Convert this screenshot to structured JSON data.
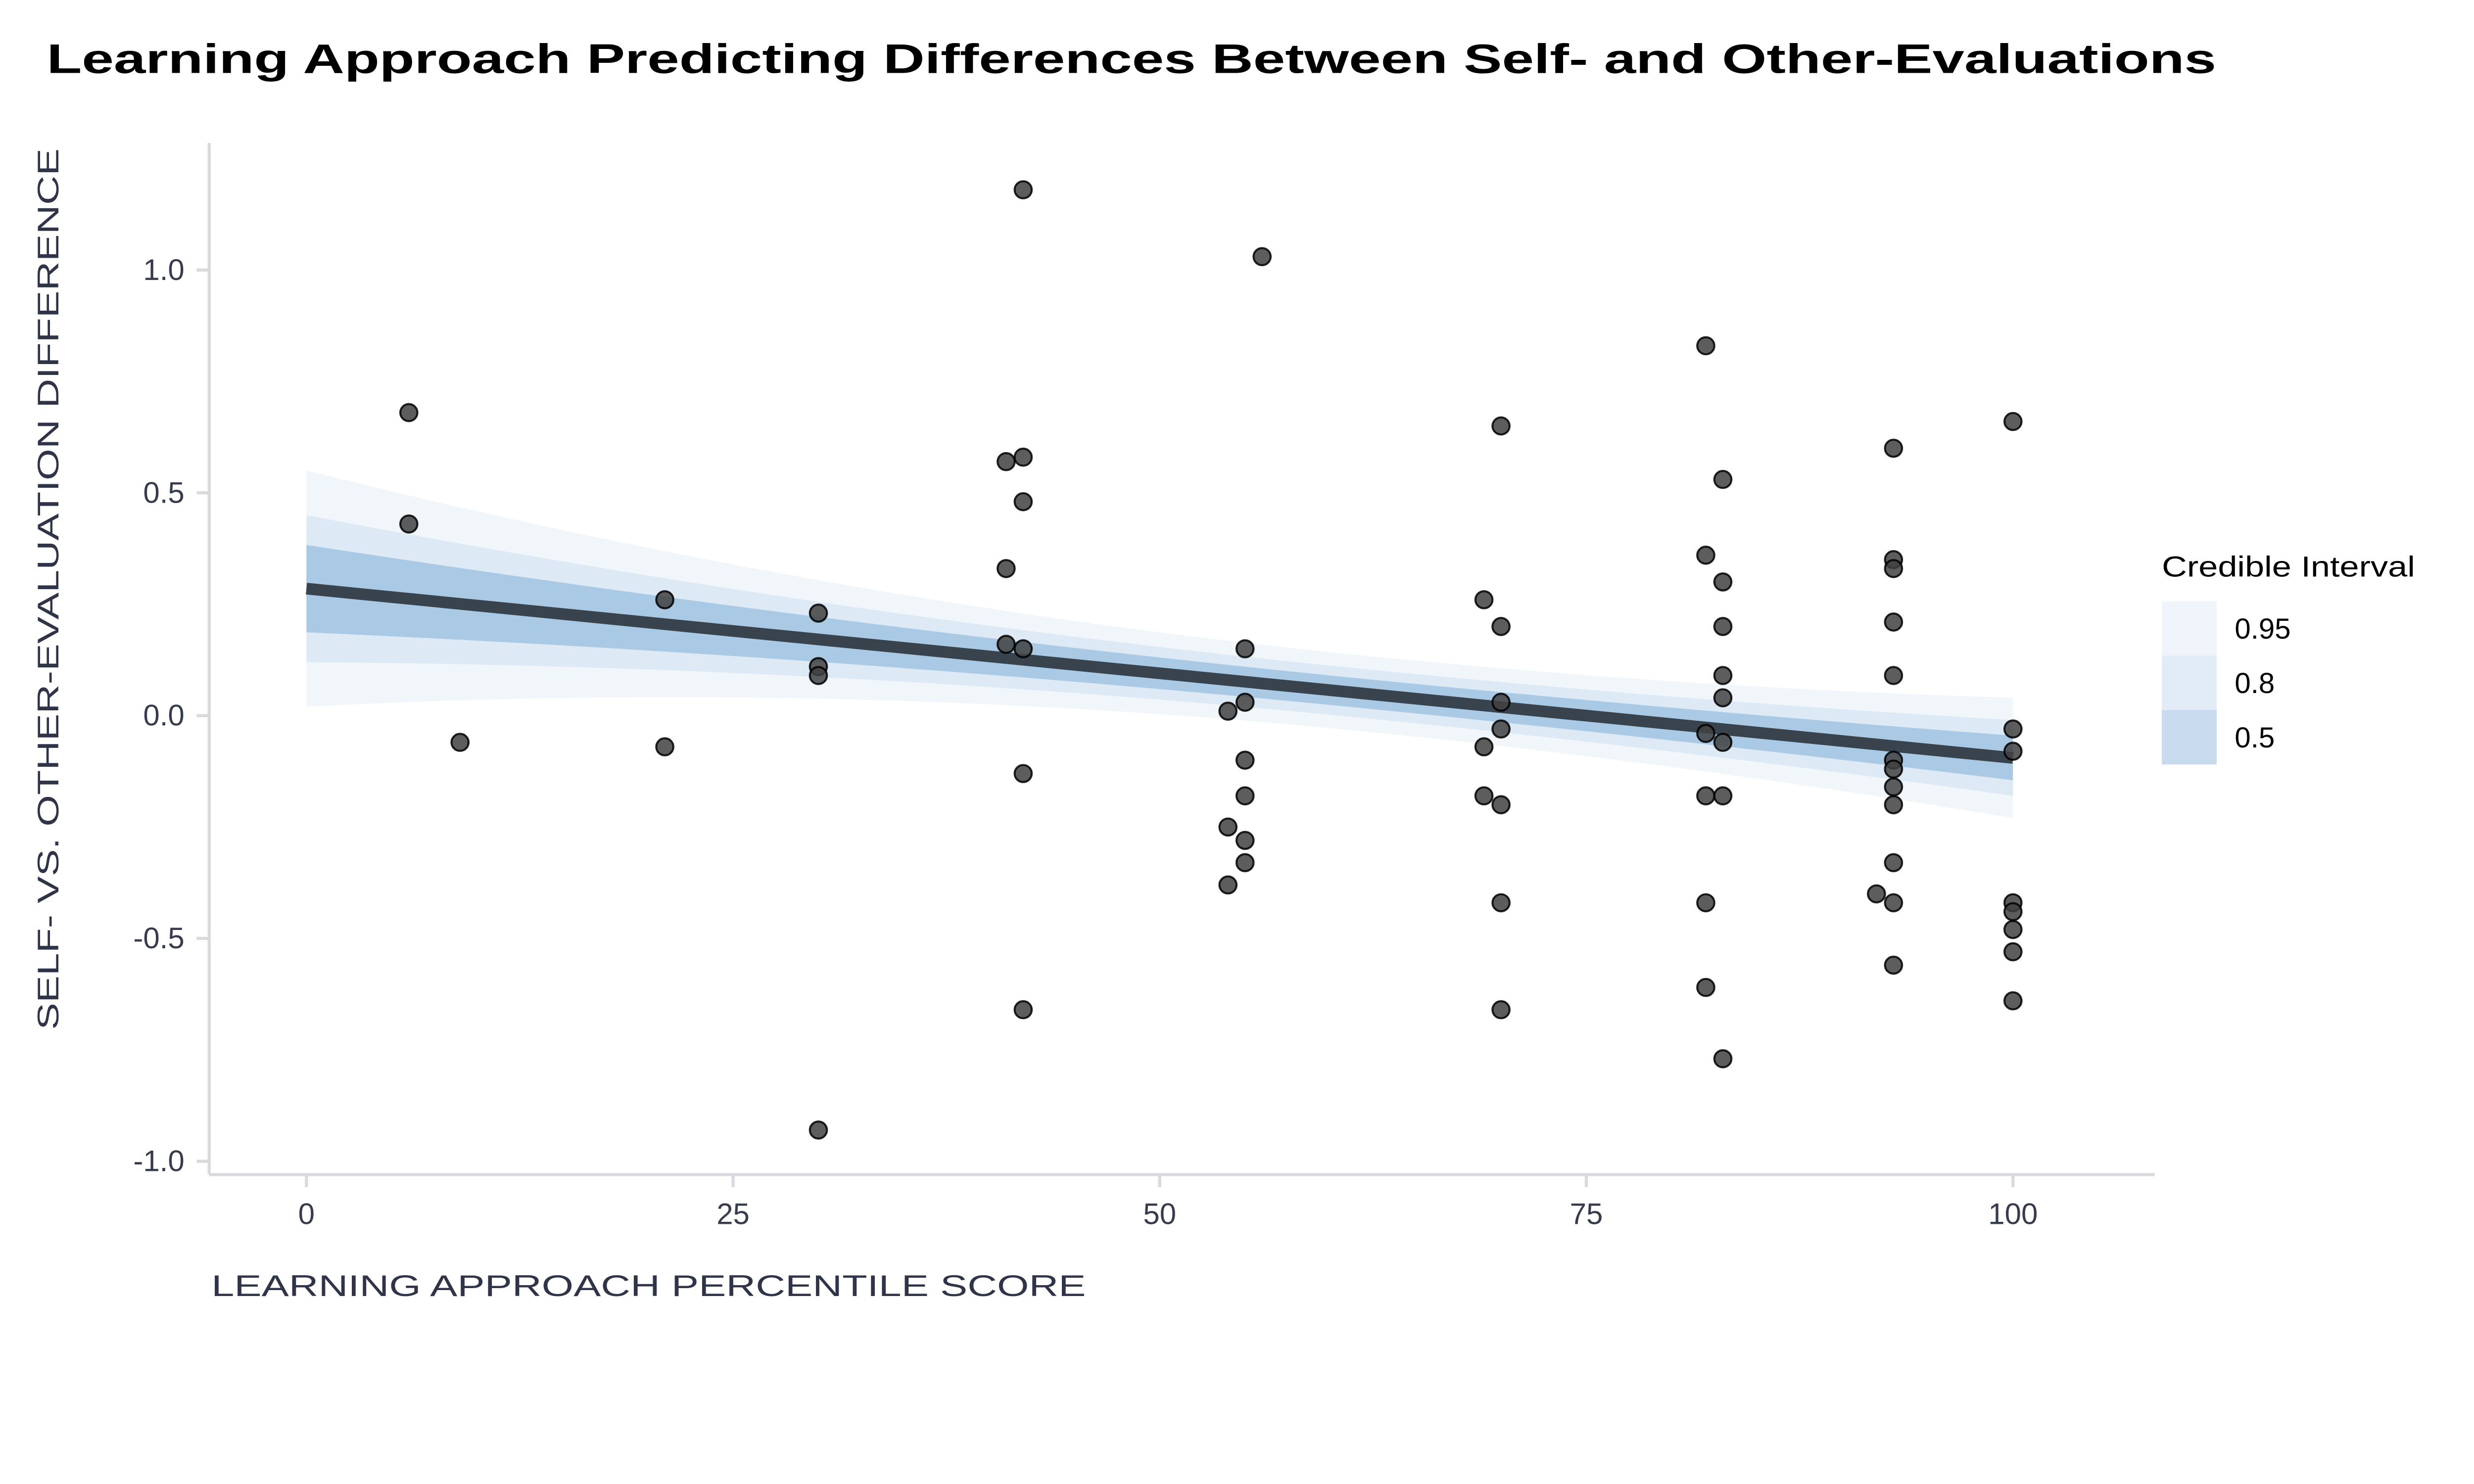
{
  "title": "Learning Approach Predicting Differences Between Self- and Other-Evaluations",
  "chart_data": {
    "type": "scatter",
    "title": "Learning Approach Predicting Differences Between Self- and Other-Evaluations",
    "xlabel": "LEARNING APPROACH PERCENTILE SCORE",
    "ylabel": "SELF- VS. OTHER-EVALUATION DIFFERENCE",
    "xlim": [
      -5.7,
      108.3
    ],
    "ylim": [
      -1.03,
      1.285
    ],
    "grid": false,
    "legend_position": "right-middle",
    "x_ticks": [
      {
        "value": 0,
        "label": "0"
      },
      {
        "value": 25,
        "label": "25"
      },
      {
        "value": 50,
        "label": "50"
      },
      {
        "value": 75,
        "label": "75"
      },
      {
        "value": 100,
        "label": "100"
      }
    ],
    "y_ticks": [
      {
        "value": 1.0,
        "label": "1.0"
      },
      {
        "value": 0.5,
        "label": "0.5"
      },
      {
        "value": 0.0,
        "label": "0.0"
      },
      {
        "value": -0.5,
        "label": "-0.5"
      },
      {
        "value": -1.0,
        "label": "-1.0"
      }
    ],
    "points": [
      [
        6,
        0.68
      ],
      [
        6,
        0.43
      ],
      [
        9,
        -0.06
      ],
      [
        21,
        0.26
      ],
      [
        21,
        -0.07
      ],
      [
        30,
        0.23
      ],
      [
        30,
        0.11
      ],
      [
        30,
        0.09
      ],
      [
        30,
        -0.93
      ],
      [
        41,
        0.57
      ],
      [
        41,
        0.33
      ],
      [
        41,
        0.16
      ],
      [
        42,
        1.18
      ],
      [
        42,
        0.58
      ],
      [
        42,
        0.48
      ],
      [
        42,
        0.15
      ],
      [
        42,
        -0.13
      ],
      [
        42,
        -0.66
      ],
      [
        54,
        0.01
      ],
      [
        54,
        -0.25
      ],
      [
        54,
        -0.38
      ],
      [
        55,
        0.15
      ],
      [
        55,
        0.03
      ],
      [
        55,
        -0.1
      ],
      [
        55,
        -0.18
      ],
      [
        55,
        -0.28
      ],
      [
        55,
        -0.33
      ],
      [
        56,
        1.03
      ],
      [
        69,
        0.26
      ],
      [
        69,
        -0.07
      ],
      [
        69,
        -0.18
      ],
      [
        70,
        0.65
      ],
      [
        70,
        0.2
      ],
      [
        70,
        0.03
      ],
      [
        70,
        -0.03
      ],
      [
        70,
        -0.2
      ],
      [
        70,
        -0.42
      ],
      [
        70,
        -0.66
      ],
      [
        82,
        0.83
      ],
      [
        82,
        0.36
      ],
      [
        82,
        -0.04
      ],
      [
        82,
        -0.18
      ],
      [
        82,
        -0.42
      ],
      [
        82,
        -0.61
      ],
      [
        83,
        0.53
      ],
      [
        83,
        0.3
      ],
      [
        83,
        0.2
      ],
      [
        83,
        0.09
      ],
      [
        83,
        0.04
      ],
      [
        83,
        -0.06
      ],
      [
        83,
        -0.18
      ],
      [
        83,
        -0.77
      ],
      [
        92,
        -0.4
      ],
      [
        93,
        0.6
      ],
      [
        93,
        0.35
      ],
      [
        93,
        0.33
      ],
      [
        93,
        0.21
      ],
      [
        93,
        0.09
      ],
      [
        93,
        -0.1
      ],
      [
        93,
        -0.12
      ],
      [
        93,
        -0.16
      ],
      [
        93,
        -0.2
      ],
      [
        93,
        -0.33
      ],
      [
        93,
        -0.42
      ],
      [
        93,
        -0.56
      ],
      [
        100,
        0.66
      ],
      [
        100,
        -0.03
      ],
      [
        100,
        -0.08
      ],
      [
        100,
        -0.42
      ],
      [
        100,
        -0.44
      ],
      [
        100,
        -0.48
      ],
      [
        100,
        -0.53
      ],
      [
        100,
        -0.64
      ]
    ],
    "regression_line": {
      "x0": 0,
      "y0": 0.285,
      "x1": 100,
      "y1": -0.095
    },
    "credible_bands": [
      {
        "level": "0.95",
        "fill": "#f1f6fb",
        "half_width_x0": 0.265,
        "half_width_min": 0.085,
        "half_width_x100": 0.135,
        "x_at_min": 62
      },
      {
        "level": "0.8",
        "fill": "#dde9f4",
        "half_width_x0": 0.165,
        "half_width_min": 0.055,
        "half_width_x100": 0.085,
        "x_at_min": 62
      },
      {
        "level": "0.5",
        "fill": "#aac9e4",
        "half_width_x0": 0.098,
        "half_width_min": 0.033,
        "half_width_x100": 0.05,
        "x_at_min": 62
      }
    ],
    "legend": {
      "title": "Credible Interval",
      "entries": [
        {
          "label": "0.95",
          "swatch": "#eff5fa"
        },
        {
          "label": "0.8",
          "swatch": "#e2ecf6"
        },
        {
          "label": "0.5",
          "swatch": "#c8daed"
        }
      ]
    }
  },
  "style": {
    "title_color": "#000000",
    "axis_color": "#d8dae0",
    "tick_label_color": "#363b4e",
    "axis_title_color": "#2f3448",
    "point_fill": "#414141",
    "point_stroke": "#000000",
    "line_color": "#39434e",
    "background": "#ffffff"
  }
}
